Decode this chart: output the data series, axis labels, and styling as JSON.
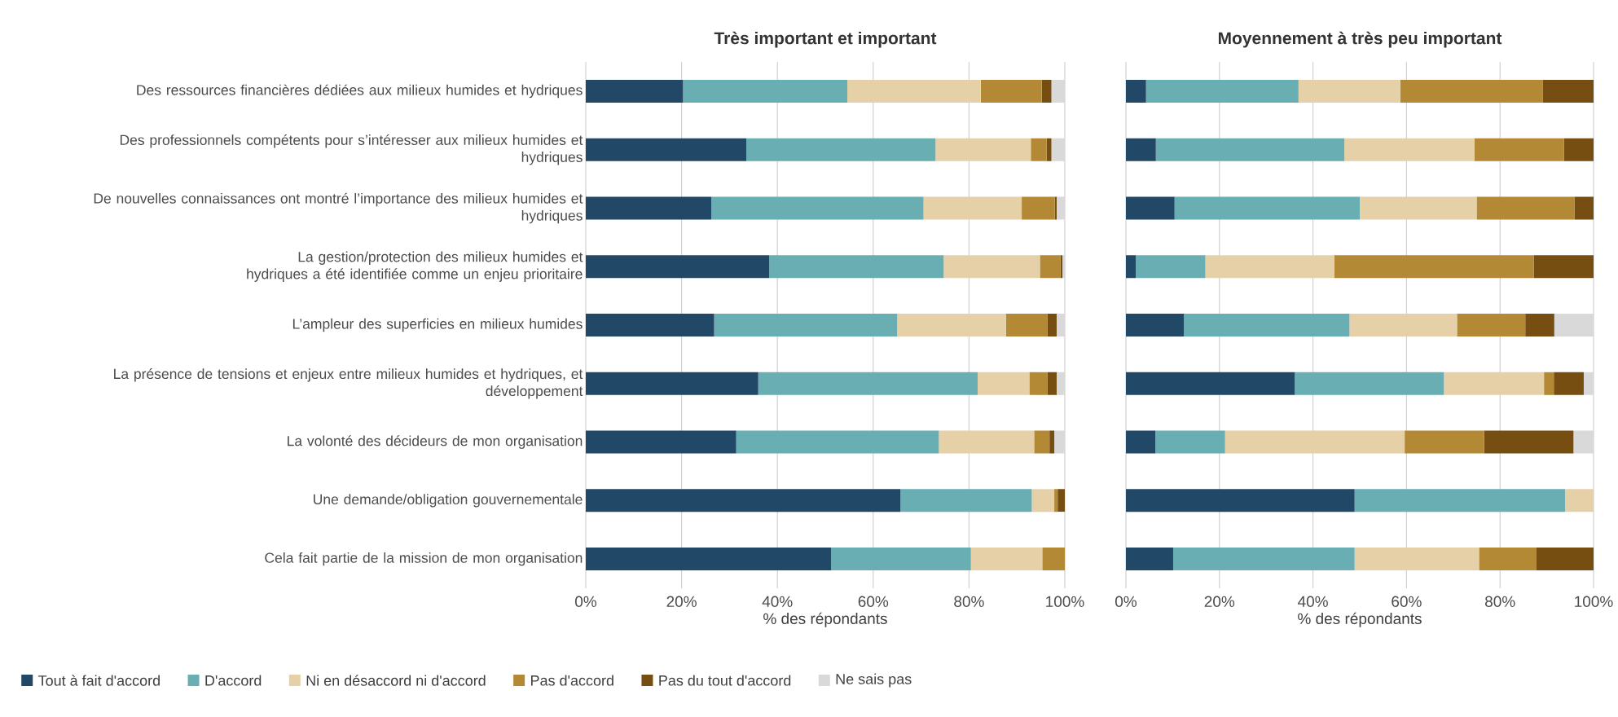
{
  "chart_data": [
    {
      "type": "bar",
      "orientation": "horizontal",
      "stacked": true,
      "title": "Très important et important",
      "xlabel": "% des répondants",
      "categories": [
        "Des ressources financières dédiées aux milieux humides et hydriques",
        "Des professionnels compétents pour s’intéresser aux milieux humides et hydriques",
        "De nouvelles connaissances ont montré l’importance des milieux humides et hydriques",
        "La gestion/protection des milieux humides et hydriques a été identifiée comme un enjeu prioritaire",
        "L’ampleur des superficies en milieux humides",
        "La présence de tensions et enjeux entre milieux humides et hydriques, et développement",
        "La volonté des décideurs de mon organisation",
        "Une demande/obligation gouvernementale",
        "Cela fait partie de la mission de mon organisation"
      ],
      "series": [
        {
          "name": "Tout à fait d'accord",
          "color": "#214866",
          "values": [
            20.3,
            33.5,
            26.2,
            38.3,
            26.8,
            36.0,
            31.4,
            65.7,
            51.2
          ]
        },
        {
          "name": "D'accord",
          "color": "#69aeb2",
          "values": [
            34.3,
            39.5,
            44.3,
            36.4,
            38.2,
            45.8,
            42.3,
            27.4,
            29.2
          ]
        },
        {
          "name": "Ni en désaccord ni d'accord",
          "color": "#e5d0a8",
          "values": [
            27.8,
            19.9,
            20.5,
            20.1,
            22.7,
            10.8,
            19.9,
            4.7,
            14.9
          ]
        },
        {
          "name": "Pas d'accord",
          "color": "#b48935",
          "values": [
            12.8,
            3.3,
            6.9,
            4.3,
            8.7,
            3.8,
            3.2,
            0.7,
            4.7
          ]
        },
        {
          "name": "Pas du tout d'accord",
          "color": "#774e12",
          "values": [
            2.0,
            1.0,
            0.4,
            0.4,
            1.9,
            1.9,
            1.0,
            1.5,
            0
          ]
        },
        {
          "name": "Ne sais pas",
          "color": "#d9d9d9",
          "values": [
            2.8,
            2.8,
            1.7,
            0.5,
            1.7,
            1.7,
            2.2,
            0,
            0
          ]
        }
      ],
      "xlim": [
        0,
        100
      ],
      "xticks": [
        {
          "value": 0,
          "label": "0%"
        },
        {
          "value": 20,
          "label": "20%"
        },
        {
          "value": 40,
          "label": "40%"
        },
        {
          "value": 60,
          "label": "60%"
        },
        {
          "value": 80,
          "label": "80%"
        },
        {
          "value": 100,
          "label": "100%"
        }
      ],
      "grid": "x",
      "legend": "bottom"
    },
    {
      "type": "bar",
      "orientation": "horizontal",
      "stacked": true,
      "title": "Moyennement à très peu important",
      "xlabel": "% des répondants",
      "categories": [
        null,
        null,
        null,
        null,
        null,
        null,
        null,
        null,
        null
      ],
      "series": [
        {
          "color": "#214866",
          "values": [
            4.3,
            6.4,
            10.4,
            2.1,
            12.4,
            36.1,
            6.3,
            48.9,
            10.1
          ]
        },
        {
          "color": "#69aeb2",
          "values": [
            32.6,
            40.3,
            39.6,
            14.9,
            35.4,
            31.9,
            14.9,
            45.0,
            38.8
          ]
        },
        {
          "color": "#e5d0a8",
          "values": [
            21.8,
            27.8,
            25.0,
            27.6,
            23.0,
            21.4,
            38.4,
            6.1,
            26.6
          ]
        },
        {
          "color": "#b48935",
          "values": [
            30.4,
            19.2,
            20.9,
            42.6,
            14.6,
            2.1,
            17.0,
            0,
            12.3
          ]
        },
        {
          "color": "#774e12",
          "values": [
            10.9,
            6.3,
            4.1,
            12.8,
            6.2,
            6.4,
            19.1,
            0,
            12.2
          ]
        },
        {
          "color": "#d9d9d9",
          "values": [
            0,
            0,
            0,
            0,
            8.4,
            2.1,
            4.3,
            0,
            0
          ]
        }
      ],
      "xlim": [
        0,
        100
      ],
      "xticks": [
        {
          "value": 0,
          "label": "0%"
        },
        {
          "value": 20,
          "label": "20%"
        },
        {
          "value": 40,
          "label": "40%"
        },
        {
          "value": 60,
          "label": "60%"
        },
        {
          "value": 80,
          "label": "80%"
        },
        {
          "value": 100,
          "label": "100%"
        }
      ],
      "grid": "x"
    }
  ]
}
